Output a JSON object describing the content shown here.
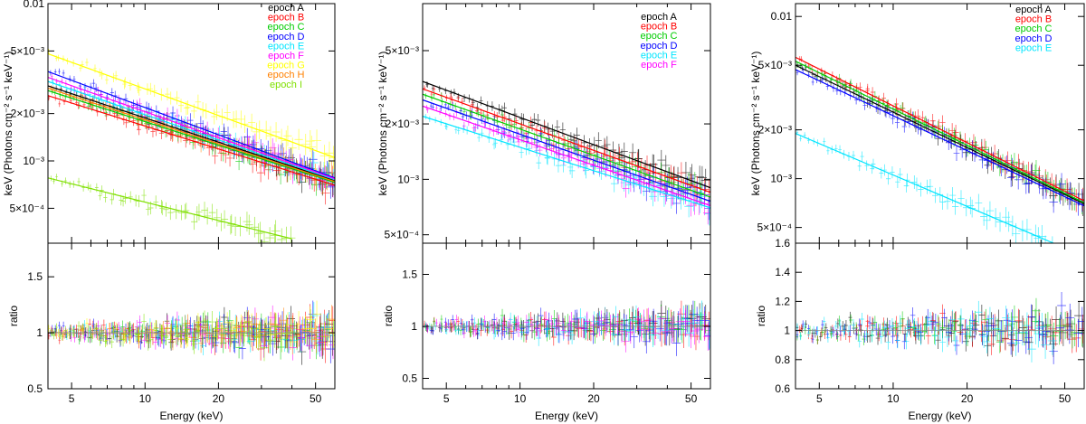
{
  "chart_data": [
    {
      "type": "line",
      "panel": "left",
      "xlabel": "Energy (keV)",
      "ylabel_top": "keV (Photons cm⁻² s⁻¹ keV⁻¹)",
      "ylabel_bottom": "ratio",
      "xlim": [
        4,
        60
      ],
      "ylim_top": [
        0.0003,
        0.01
      ],
      "ylim_bottom": [
        0.5,
        1.8
      ],
      "x_ticks": [
        {
          "v": 5,
          "label": "5"
        },
        {
          "v": 10,
          "label": "10"
        },
        {
          "v": 20,
          "label": "20"
        },
        {
          "v": 50,
          "label": "50"
        }
      ],
      "y_ticks_top": [
        {
          "v": 0.01,
          "label": "0.01"
        },
        {
          "v": 0.005,
          "label": "5×10⁻³"
        },
        {
          "v": 0.002,
          "label": "2×10⁻³"
        },
        {
          "v": 0.001,
          "label": "10⁻³"
        },
        {
          "v": 0.0005,
          "label": "5×10⁻⁴"
        }
      ],
      "y_ticks_bottom": [
        {
          "v": 0.5,
          "label": "0.5"
        },
        {
          "v": 1,
          "label": "1"
        },
        {
          "v": 1.5,
          "label": "1.5"
        }
      ],
      "series": [
        {
          "name": "epoch A",
          "color": "#000000",
          "x": [
            4,
            60
          ],
          "y": [
            0.003,
            0.00075
          ]
        },
        {
          "name": "epoch B",
          "color": "#ff0000",
          "x": [
            4,
            60
          ],
          "y": [
            0.0026,
            0.0007
          ]
        },
        {
          "name": "epoch C",
          "color": "#00cc00",
          "x": [
            4,
            60
          ],
          "y": [
            0.0028,
            0.00073
          ]
        },
        {
          "name": "epoch D",
          "color": "#0000ff",
          "x": [
            4,
            60
          ],
          "y": [
            0.0037,
            0.00078
          ]
        },
        {
          "name": "epoch E",
          "color": "#00e5ff",
          "x": [
            4,
            60
          ],
          "y": [
            0.0032,
            0.00076
          ]
        },
        {
          "name": "epoch F",
          "color": "#ff00ff",
          "x": [
            4,
            60
          ],
          "y": [
            0.0034,
            0.00077
          ]
        },
        {
          "name": "epoch G",
          "color": "#ffff00",
          "x": [
            4,
            60
          ],
          "y": [
            0.0048,
            0.00105
          ]
        },
        {
          "name": "epoch H",
          "color": "#ff8000",
          "x": [
            4,
            60
          ],
          "y": [
            0.0029,
            0.00074
          ]
        },
        {
          "name": "epoch I",
          "color": "#7fe000",
          "x": [
            4,
            40
          ],
          "y": [
            0.00078,
            0.00032
          ]
        }
      ]
    },
    {
      "type": "line",
      "panel": "middle",
      "xlabel": "Energy (keV)",
      "ylabel_top": "keV (Photons cm⁻² s⁻¹ keV⁻¹)",
      "ylabel_bottom": "ratio",
      "xlim": [
        4,
        60
      ],
      "ylim_top": [
        0.00045,
        0.009
      ],
      "ylim_bottom": [
        0.4,
        1.8
      ],
      "x_ticks": [
        {
          "v": 5,
          "label": "5"
        },
        {
          "v": 10,
          "label": "10"
        },
        {
          "v": 20,
          "label": "20"
        },
        {
          "v": 50,
          "label": "50"
        }
      ],
      "y_ticks_top": [
        {
          "v": 0.005,
          "label": "5×10⁻³"
        },
        {
          "v": 0.002,
          "label": "2×10⁻³"
        },
        {
          "v": 0.001,
          "label": "10⁻³"
        },
        {
          "v": 0.0005,
          "label": "5×10⁻⁴"
        }
      ],
      "y_ticks_bottom": [
        {
          "v": 0.5,
          "label": "0.5"
        },
        {
          "v": 1,
          "label": "1"
        },
        {
          "v": 1.5,
          "label": "1.5"
        }
      ],
      "series": [
        {
          "name": "epoch A",
          "color": "#000000",
          "x": [
            4,
            60
          ],
          "y": [
            0.0034,
            0.0009
          ]
        },
        {
          "name": "epoch B",
          "color": "#ff0000",
          "x": [
            4,
            60
          ],
          "y": [
            0.0031,
            0.00085
          ]
        },
        {
          "name": "epoch C",
          "color": "#00cc00",
          "x": [
            4,
            60
          ],
          "y": [
            0.0029,
            0.0008
          ]
        },
        {
          "name": "epoch D",
          "color": "#0000ff",
          "x": [
            4,
            60
          ],
          "y": [
            0.0027,
            0.00076
          ]
        },
        {
          "name": "epoch E",
          "color": "#00e5ff",
          "x": [
            4,
            60
          ],
          "y": [
            0.0022,
            0.0007
          ]
        },
        {
          "name": "epoch F",
          "color": "#ff00ff",
          "x": [
            4,
            60
          ],
          "y": [
            0.0025,
            0.00072
          ]
        }
      ]
    },
    {
      "type": "line",
      "panel": "right",
      "xlabel": "Energy (keV)",
      "ylabel_top": "keV (Photons cm⁻² s⁻¹ keV⁻¹)",
      "ylabel_bottom": "ratio",
      "xlim": [
        4,
        60
      ],
      "ylim_top": [
        0.0004,
        0.012
      ],
      "ylim_bottom": [
        0.6,
        1.6
      ],
      "x_ticks": [
        {
          "v": 5,
          "label": "5"
        },
        {
          "v": 10,
          "label": "10"
        },
        {
          "v": 20,
          "label": "20"
        },
        {
          "v": 50,
          "label": "50"
        }
      ],
      "y_ticks_top": [
        {
          "v": 0.01,
          "label": "0.01"
        },
        {
          "v": 0.005,
          "label": "5×10⁻³"
        },
        {
          "v": 0.002,
          "label": "2×10⁻³"
        },
        {
          "v": 0.001,
          "label": "10⁻³"
        },
        {
          "v": 0.0005,
          "label": "5×10⁻⁴"
        }
      ],
      "y_ticks_bottom": [
        {
          "v": 0.6,
          "label": "0.6"
        },
        {
          "v": 0.8,
          "label": "0.8"
        },
        {
          "v": 1,
          "label": "1"
        },
        {
          "v": 1.2,
          "label": "1.2"
        },
        {
          "v": 1.4,
          "label": "1.4"
        },
        {
          "v": 1.6,
          "label": "1.6"
        }
      ],
      "series": [
        {
          "name": "epoch A",
          "color": "#000000",
          "x": [
            4,
            60
          ],
          "y": [
            0.005,
            0.0007
          ]
        },
        {
          "name": "epoch B",
          "color": "#ff0000",
          "x": [
            4,
            60
          ],
          "y": [
            0.0056,
            0.00073
          ]
        },
        {
          "name": "epoch C",
          "color": "#00cc00",
          "x": [
            4,
            60
          ],
          "y": [
            0.0053,
            0.00071
          ]
        },
        {
          "name": "epoch D",
          "color": "#0000ff",
          "x": [
            4,
            60
          ],
          "y": [
            0.0047,
            0.00068
          ]
        },
        {
          "name": "epoch E",
          "color": "#00e5ff",
          "x": [
            4,
            45
          ],
          "y": [
            0.0019,
            0.0004
          ]
        }
      ]
    }
  ]
}
